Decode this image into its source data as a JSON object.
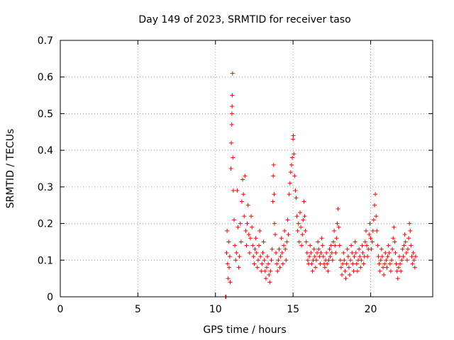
{
  "chart_data": {
    "type": "scatter",
    "title": "Day 149 of 2023, SRMTID for receiver taso",
    "xlabel": "GPS time / hours",
    "ylabel": "SRMTID / TECUs",
    "xlim": [
      0,
      24
    ],
    "ylim": [
      0,
      0.7
    ],
    "xticks": [
      0,
      5,
      10,
      15,
      20
    ],
    "xtick_labels": [
      "0",
      "5",
      "10",
      "15",
      "20"
    ],
    "yticks": [
      0,
      0.1,
      0.2,
      0.3,
      0.4,
      0.5,
      0.6,
      0.7
    ],
    "ytick_labels": [
      "0",
      "0.1",
      "0.2",
      "0.3",
      "0.4",
      "0.5",
      "0.6",
      "0.7"
    ],
    "grid": true,
    "marker": "+",
    "marker_color": "#ff0000",
    "series": [
      {
        "name": "SRMTID",
        "points": [
          [
            10.65,
            0.0
          ],
          [
            10.68,
            0.0
          ],
          [
            10.72,
            0.12
          ],
          [
            10.75,
            0.18
          ],
          [
            10.78,
            0.09
          ],
          [
            10.82,
            0.05
          ],
          [
            10.85,
            0.15
          ],
          [
            10.88,
            0.08
          ],
          [
            10.92,
            0.11
          ],
          [
            10.95,
            0.04
          ],
          [
            11.0,
            0.35
          ],
          [
            11.02,
            0.42
          ],
          [
            11.05,
            0.47
          ],
          [
            11.06,
            0.5
          ],
          [
            11.07,
            0.52
          ],
          [
            11.08,
            0.55
          ],
          [
            11.1,
            0.61
          ],
          [
            11.12,
            0.38
          ],
          [
            11.15,
            0.29
          ],
          [
            11.2,
            0.21
          ],
          [
            11.25,
            0.14
          ],
          [
            11.3,
            0.1
          ],
          [
            11.35,
            0.12
          ],
          [
            11.4,
            0.29
          ],
          [
            11.45,
            0.19
          ],
          [
            11.5,
            0.08
          ],
          [
            11.55,
            0.11
          ],
          [
            11.6,
            0.2
          ],
          [
            11.65,
            0.15
          ],
          [
            11.7,
            0.26
          ],
          [
            11.75,
            0.32
          ],
          [
            11.8,
            0.28
          ],
          [
            11.85,
            0.22
          ],
          [
            11.9,
            0.33
          ],
          [
            11.95,
            0.18
          ],
          [
            12.0,
            0.14
          ],
          [
            12.05,
            0.2
          ],
          [
            12.1,
            0.25
          ],
          [
            12.15,
            0.17
          ],
          [
            12.2,
            0.12
          ],
          [
            12.25,
            0.16
          ],
          [
            12.3,
            0.22
          ],
          [
            12.35,
            0.19
          ],
          [
            12.4,
            0.14
          ],
          [
            12.45,
            0.11
          ],
          [
            12.5,
            0.09
          ],
          [
            12.55,
            0.13
          ],
          [
            12.6,
            0.16
          ],
          [
            12.65,
            0.12
          ],
          [
            12.7,
            0.08
          ],
          [
            12.75,
            0.1
          ],
          [
            12.8,
            0.14
          ],
          [
            12.85,
            0.18
          ],
          [
            12.9,
            0.11
          ],
          [
            12.95,
            0.07
          ],
          [
            13.0,
            0.09
          ],
          [
            13.05,
            0.12
          ],
          [
            13.1,
            0.15
          ],
          [
            13.15,
            0.1
          ],
          [
            13.2,
            0.07
          ],
          [
            13.25,
            0.05
          ],
          [
            13.3,
            0.08
          ],
          [
            13.35,
            0.11
          ],
          [
            13.4,
            0.09
          ],
          [
            13.45,
            0.06
          ],
          [
            13.5,
            0.04
          ],
          [
            13.55,
            0.07
          ],
          [
            13.6,
            0.1
          ],
          [
            13.65,
            0.13
          ],
          [
            13.7,
            0.26
          ],
          [
            13.72,
            0.33
          ],
          [
            13.75,
            0.36
          ],
          [
            13.78,
            0.28
          ],
          [
            13.8,
            0.2
          ],
          [
            13.85,
            0.17
          ],
          [
            13.9,
            0.12
          ],
          [
            13.95,
            0.09
          ],
          [
            14.0,
            0.07
          ],
          [
            14.05,
            0.1
          ],
          [
            14.1,
            0.13
          ],
          [
            14.15,
            0.08
          ],
          [
            14.2,
            0.11
          ],
          [
            14.25,
            0.16
          ],
          [
            14.3,
            0.12
          ],
          [
            14.35,
            0.09
          ],
          [
            14.4,
            0.14
          ],
          [
            14.45,
            0.18
          ],
          [
            14.5,
            0.13
          ],
          [
            14.55,
            0.1
          ],
          [
            14.6,
            0.15
          ],
          [
            14.65,
            0.21
          ],
          [
            14.7,
            0.17
          ],
          [
            14.75,
            0.28
          ],
          [
            14.8,
            0.31
          ],
          [
            14.85,
            0.34
          ],
          [
            14.9,
            0.36
          ],
          [
            14.95,
            0.38
          ],
          [
            15.0,
            0.43
          ],
          [
            15.02,
            0.44
          ],
          [
            15.05,
            0.39
          ],
          [
            15.1,
            0.33
          ],
          [
            15.15,
            0.29
          ],
          [
            15.2,
            0.27
          ],
          [
            15.25,
            0.22
          ],
          [
            15.3,
            0.18
          ],
          [
            15.35,
            0.2
          ],
          [
            15.4,
            0.15
          ],
          [
            15.45,
            0.23
          ],
          [
            15.5,
            0.19
          ],
          [
            15.55,
            0.14
          ],
          [
            15.6,
            0.17
          ],
          [
            15.65,
            0.21
          ],
          [
            15.7,
            0.26
          ],
          [
            15.75,
            0.22
          ],
          [
            15.8,
            0.18
          ],
          [
            15.85,
            0.15
          ],
          [
            15.9,
            0.12
          ],
          [
            15.95,
            0.1
          ],
          [
            16.0,
            0.09
          ],
          [
            16.05,
            0.11
          ],
          [
            16.1,
            0.14
          ],
          [
            16.15,
            0.12
          ],
          [
            16.2,
            0.09
          ],
          [
            16.25,
            0.07
          ],
          [
            16.3,
            0.1
          ],
          [
            16.35,
            0.13
          ],
          [
            16.4,
            0.11
          ],
          [
            16.45,
            0.08
          ],
          [
            16.5,
            0.1
          ],
          [
            16.55,
            0.12
          ],
          [
            16.6,
            0.15
          ],
          [
            16.65,
            0.13
          ],
          [
            16.7,
            0.11
          ],
          [
            16.75,
            0.09
          ],
          [
            16.8,
            0.12
          ],
          [
            16.85,
            0.16
          ],
          [
            16.9,
            0.14
          ],
          [
            16.95,
            0.11
          ],
          [
            17.0,
            0.09
          ],
          [
            17.05,
            0.08
          ],
          [
            17.1,
            0.1
          ],
          [
            17.15,
            0.12
          ],
          [
            17.2,
            0.09
          ],
          [
            17.25,
            0.07
          ],
          [
            17.3,
            0.1
          ],
          [
            17.35,
            0.13
          ],
          [
            17.4,
            0.11
          ],
          [
            17.45,
            0.14
          ],
          [
            17.5,
            0.12
          ],
          [
            17.55,
            0.1
          ],
          [
            17.6,
            0.15
          ],
          [
            17.65,
            0.18
          ],
          [
            17.7,
            0.14
          ],
          [
            17.75,
            0.12
          ],
          [
            17.8,
            0.16
          ],
          [
            17.85,
            0.2
          ],
          [
            17.9,
            0.24
          ],
          [
            17.95,
            0.19
          ],
          [
            18.0,
            0.14
          ],
          [
            18.05,
            0.1
          ],
          [
            18.1,
            0.08
          ],
          [
            18.15,
            0.06
          ],
          [
            18.2,
            0.09
          ],
          [
            18.25,
            0.12
          ],
          [
            18.3,
            0.1
          ],
          [
            18.35,
            0.07
          ],
          [
            18.4,
            0.05
          ],
          [
            18.45,
            0.09
          ],
          [
            18.5,
            0.13
          ],
          [
            18.55,
            0.11
          ],
          [
            18.6,
            0.08
          ],
          [
            18.65,
            0.06
          ],
          [
            18.7,
            0.1
          ],
          [
            18.75,
            0.14
          ],
          [
            18.8,
            0.12
          ],
          [
            18.85,
            0.09
          ],
          [
            18.9,
            0.07
          ],
          [
            18.95,
            0.11
          ],
          [
            19.0,
            0.15
          ],
          [
            19.05,
            0.12
          ],
          [
            19.1,
            0.09
          ],
          [
            19.15,
            0.07
          ],
          [
            19.2,
            0.1
          ],
          [
            19.25,
            0.13
          ],
          [
            19.3,
            0.11
          ],
          [
            19.35,
            0.08
          ],
          [
            19.4,
            0.1
          ],
          [
            19.45,
            0.14
          ],
          [
            19.5,
            0.12
          ],
          [
            19.55,
            0.09
          ],
          [
            19.6,
            0.11
          ],
          [
            19.65,
            0.15
          ],
          [
            19.7,
            0.18
          ],
          [
            19.75,
            0.14
          ],
          [
            19.8,
            0.11
          ],
          [
            19.85,
            0.13
          ],
          [
            19.9,
            0.17
          ],
          [
            19.95,
            0.2
          ],
          [
            20.0,
            0.16
          ],
          [
            20.05,
            0.13
          ],
          [
            20.1,
            0.15
          ],
          [
            20.15,
            0.18
          ],
          [
            20.2,
            0.21
          ],
          [
            20.25,
            0.25
          ],
          [
            20.3,
            0.28
          ],
          [
            20.35,
            0.22
          ],
          [
            20.4,
            0.18
          ],
          [
            20.45,
            0.14
          ],
          [
            20.5,
            0.11
          ],
          [
            20.55,
            0.09
          ],
          [
            20.6,
            0.07
          ],
          [
            20.65,
            0.1
          ],
          [
            20.7,
            0.13
          ],
          [
            20.75,
            0.11
          ],
          [
            20.8,
            0.08
          ],
          [
            20.85,
            0.06
          ],
          [
            20.9,
            0.09
          ],
          [
            20.95,
            0.12
          ],
          [
            21.0,
            0.1
          ],
          [
            21.05,
            0.08
          ],
          [
            21.1,
            0.11
          ],
          [
            21.15,
            0.14
          ],
          [
            21.2,
            0.12
          ],
          [
            21.25,
            0.09
          ],
          [
            21.3,
            0.07
          ],
          [
            21.35,
            0.1
          ],
          [
            21.4,
            0.13
          ],
          [
            21.45,
            0.16
          ],
          [
            21.5,
            0.19
          ],
          [
            21.55,
            0.15
          ],
          [
            21.6,
            0.12
          ],
          [
            21.65,
            0.09
          ],
          [
            21.7,
            0.07
          ],
          [
            21.75,
            0.05
          ],
          [
            21.8,
            0.08
          ],
          [
            21.85,
            0.11
          ],
          [
            21.9,
            0.09
          ],
          [
            21.95,
            0.07
          ],
          [
            22.0,
            0.1
          ],
          [
            22.05,
            0.13
          ],
          [
            22.1,
            0.11
          ],
          [
            22.15,
            0.14
          ],
          [
            22.2,
            0.17
          ],
          [
            22.25,
            0.15
          ],
          [
            22.3,
            0.12
          ],
          [
            22.35,
            0.1
          ],
          [
            22.4,
            0.13
          ],
          [
            22.45,
            0.16
          ],
          [
            22.5,
            0.2
          ],
          [
            22.55,
            0.18
          ],
          [
            22.6,
            0.14
          ],
          [
            22.65,
            0.11
          ],
          [
            22.7,
            0.09
          ],
          [
            22.75,
            0.12
          ],
          [
            22.8,
            0.1
          ],
          [
            22.85,
            0.08
          ],
          [
            22.9,
            0.11
          ]
        ]
      }
    ]
  }
}
